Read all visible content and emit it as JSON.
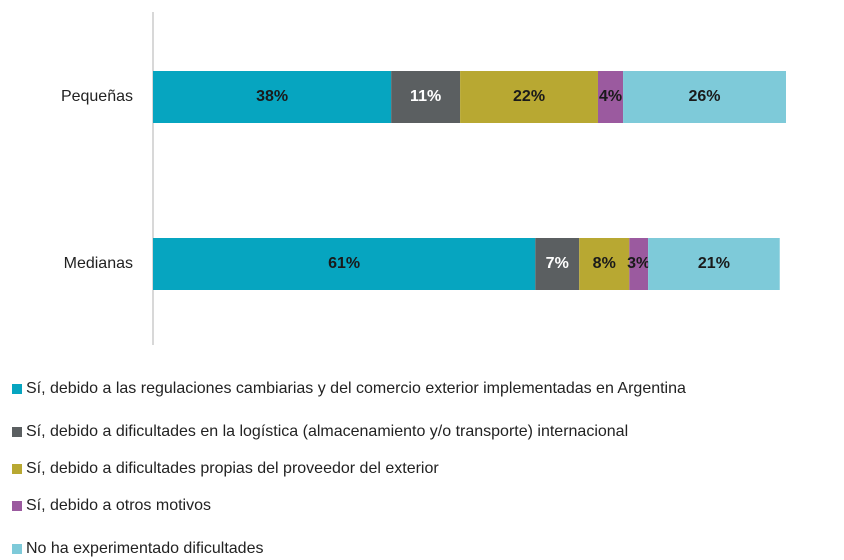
{
  "chart_data": {
    "type": "stacked_bar_horizontal",
    "categories": [
      "Pequeñas",
      "Medianas"
    ],
    "xlim": [
      0,
      101
    ],
    "series": [
      {
        "name": "Sí, debido a las regulaciones cambiarias y del comercio exterior implementadas en Argentina",
        "color": "#06a5c0",
        "values": [
          38,
          61
        ],
        "value_labels": [
          "38%",
          "61%"
        ]
      },
      {
        "name": "Sí, debido a dificultades en la logística (almacenamiento y/o transporte) internacional",
        "color": "#5b5f61",
        "values": [
          11,
          7
        ],
        "value_labels": [
          "11%",
          "7%"
        ]
      },
      {
        "name": "Sí, debido a dificultades propias del proveedor del exterior",
        "color": "#b8a832",
        "values": [
          22,
          8
        ],
        "value_labels": [
          "22%",
          "8%"
        ]
      },
      {
        "name": "Sí, debido a otros motivos",
        "color": "#9b5a9f",
        "values": [
          4,
          3
        ],
        "value_labels": [
          "4%",
          "3%"
        ]
      },
      {
        "name": "No ha experimentado dificultades",
        "color": "#7ecad9",
        "values": [
          26,
          21
        ],
        "value_labels": [
          "26%",
          "21%"
        ]
      }
    ]
  }
}
